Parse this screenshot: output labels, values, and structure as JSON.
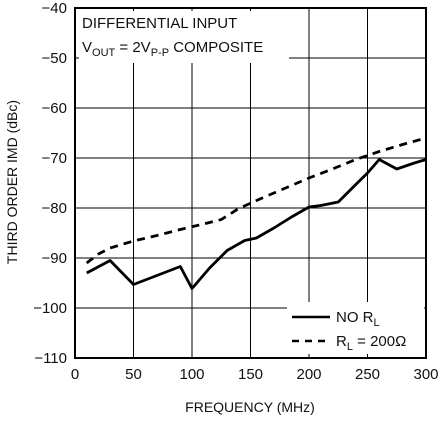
{
  "chart_data": {
    "type": "line",
    "xlabel": "FREQUENCY (MHz)",
    "ylabel": "THIRD ORDER IMD (dBc)",
    "xlim": [
      0,
      300
    ],
    "ylim": [
      -110,
      -40
    ],
    "x_ticks": [
      "0",
      "50",
      "100",
      "150",
      "200",
      "250",
      "300"
    ],
    "y_ticks": [
      "−40",
      "−50",
      "−60",
      "−70",
      "−80",
      "−90",
      "−100",
      "−110"
    ],
    "grid": true,
    "annotation": {
      "line1": "DIFFERENTIAL INPUT",
      "line2_prefix": "V",
      "line2_sub1": "OUT",
      "line2_mid": " = 2V",
      "line2_sub2": "P-P",
      "line2_suffix": " COMPOSITE"
    },
    "legend_position": "bottom-right",
    "series": [
      {
        "name": "NO R_L",
        "legend_main": "NO R",
        "legend_sub": "L",
        "legend_tail": "",
        "style": "solid",
        "color": "#000000",
        "points": [
          [
            10,
            -93
          ],
          [
            30,
            -90.5
          ],
          [
            50,
            -95.3
          ],
          [
            70,
            -93.5
          ],
          [
            90,
            -91.7
          ],
          [
            100,
            -96.1
          ],
          [
            115,
            -92
          ],
          [
            130,
            -88.5
          ],
          [
            145,
            -86.5
          ],
          [
            155,
            -86
          ],
          [
            170,
            -84
          ],
          [
            185,
            -81.8
          ],
          [
            200,
            -79.8
          ],
          [
            210,
            -79.5
          ],
          [
            225,
            -78.8
          ],
          [
            240,
            -75.3
          ],
          [
            250,
            -73
          ],
          [
            260,
            -70.3
          ],
          [
            275,
            -72.2
          ],
          [
            290,
            -71
          ],
          [
            300,
            -70.3
          ]
        ]
      },
      {
        "name": "R_L = 200Ω",
        "legend_main": "R",
        "legend_sub": "L",
        "legend_tail": " = 200Ω",
        "style": "dashed",
        "color": "#000000",
        "points": [
          [
            10,
            -91
          ],
          [
            20,
            -89.2
          ],
          [
            30,
            -88
          ],
          [
            50,
            -86.6
          ],
          [
            70,
            -85.5
          ],
          [
            90,
            -84.3
          ],
          [
            110,
            -83.2
          ],
          [
            125,
            -82.3
          ],
          [
            140,
            -80.1
          ],
          [
            160,
            -78
          ],
          [
            180,
            -76
          ],
          [
            200,
            -74
          ],
          [
            220,
            -72.2
          ],
          [
            240,
            -70.3
          ],
          [
            260,
            -68.7
          ],
          [
            280,
            -67.3
          ],
          [
            300,
            -66
          ]
        ]
      }
    ]
  }
}
